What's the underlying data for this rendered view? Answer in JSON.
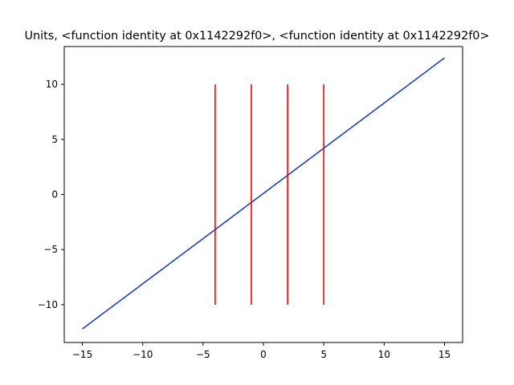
{
  "chart_data": {
    "type": "line",
    "title": "Units, <function identity at 0x1142292f0>, <function identity at 0x1142292f0>",
    "xlabel": "",
    "ylabel": "",
    "xlim": [
      -16.5,
      16.5
    ],
    "ylim": [
      -13.43,
      13.43
    ],
    "x_ticks": [
      -15,
      -10,
      -5,
      0,
      5,
      10,
      15
    ],
    "y_ticks": [
      -10,
      -5,
      0,
      5,
      10
    ],
    "grid": false,
    "legend": "none",
    "series": [
      {
        "color": "#1f3fb4",
        "x": [
          -15,
          15
        ],
        "y": [
          -12.2,
          12.4
        ]
      }
    ],
    "vlines": {
      "color": "#ff0000",
      "x": [
        -4,
        -1,
        2,
        5
      ],
      "ymin": -10,
      "ymax": 10
    }
  }
}
